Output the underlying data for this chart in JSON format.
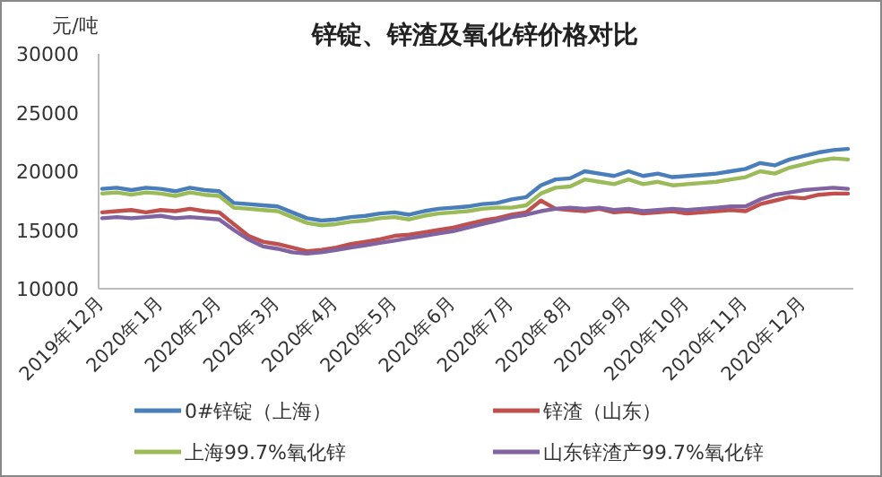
{
  "chart_data": {
    "type": "line",
    "title": "锌锭、锌渣及氧化锌价格对比",
    "ylabel": "元/吨",
    "categories": [
      "2019年12月",
      null,
      null,
      null,
      "2020年1月",
      null,
      null,
      null,
      "2020年2月",
      null,
      null,
      null,
      "2020年3月",
      null,
      null,
      null,
      "2020年4月",
      null,
      null,
      null,
      "2020年5月",
      null,
      null,
      null,
      "2020年6月",
      null,
      null,
      null,
      "2020年7月",
      null,
      null,
      null,
      "2020年8月",
      null,
      null,
      null,
      "2020年9月",
      null,
      null,
      null,
      "2020年10月",
      null,
      null,
      null,
      "2020年11月",
      null,
      null,
      null,
      "2020年12月",
      null,
      null,
      null
    ],
    "ylim": [
      10000,
      30000
    ],
    "yticks": [
      10000,
      15000,
      20000,
      25000,
      30000
    ],
    "legend": "bottom",
    "series": [
      {
        "name": "0#锌锭（上海）",
        "color": "#4a7ebb",
        "values": [
          18500,
          18600,
          18400,
          18600,
          18500,
          18300,
          18600,
          18400,
          18300,
          17300,
          17200,
          17100,
          17000,
          16500,
          16000,
          15800,
          15900,
          16100,
          16200,
          16400,
          16500,
          16300,
          16600,
          16800,
          16900,
          17000,
          17200,
          17300,
          17600,
          17800,
          18800,
          19300,
          19400,
          20000,
          19800,
          19600,
          20000,
          19600,
          19800,
          19500,
          19600,
          19700,
          19800,
          20000,
          20200,
          20700,
          20500,
          21000,
          21300,
          21600,
          21800,
          21900
        ]
      },
      {
        "name": "锌渣（山东）",
        "color": "#c0504d",
        "values": [
          16500,
          16600,
          16700,
          16500,
          16700,
          16600,
          16800,
          16600,
          16500,
          15500,
          14500,
          14000,
          13800,
          13500,
          13200,
          13300,
          13500,
          13800,
          14000,
          14200,
          14500,
          14600,
          14800,
          15000,
          15200,
          15500,
          15800,
          16000,
          16300,
          16500,
          17500,
          16800,
          16700,
          16600,
          16800,
          16500,
          16600,
          16400,
          16500,
          16600,
          16400,
          16500,
          16600,
          16700,
          16600,
          17200,
          17500,
          17800,
          17700,
          18000,
          18100,
          18100
        ]
      },
      {
        "name": "上海99.7%氧化锌",
        "color": "#9bbb59",
        "values": [
          18100,
          18200,
          18000,
          18200,
          18100,
          17900,
          18200,
          18000,
          17900,
          16900,
          16800,
          16700,
          16600,
          16100,
          15600,
          15400,
          15500,
          15700,
          15800,
          16000,
          16100,
          15900,
          16200,
          16400,
          16500,
          16600,
          16800,
          16900,
          16900,
          17100,
          18100,
          18600,
          18700,
          19300,
          19100,
          18900,
          19300,
          18900,
          19100,
          18800,
          18900,
          19000,
          19100,
          19300,
          19500,
          20000,
          19800,
          20300,
          20600,
          20900,
          21100,
          21000
        ]
      },
      {
        "name": "山东锌渣产99.7%氧化锌",
        "color": "#8064a2",
        "values": [
          16000,
          16100,
          16000,
          16100,
          16200,
          16000,
          16100,
          16000,
          15900,
          15000,
          14200,
          13600,
          13400,
          13100,
          13000,
          13100,
          13300,
          13500,
          13700,
          13900,
          14100,
          14300,
          14500,
          14700,
          14900,
          15200,
          15500,
          15800,
          16100,
          16300,
          16600,
          16800,
          16900,
          16800,
          16900,
          16700,
          16800,
          16600,
          16700,
          16800,
          16700,
          16800,
          16900,
          17000,
          17000,
          17600,
          18000,
          18200,
          18400,
          18500,
          18600,
          18500
        ]
      }
    ]
  }
}
